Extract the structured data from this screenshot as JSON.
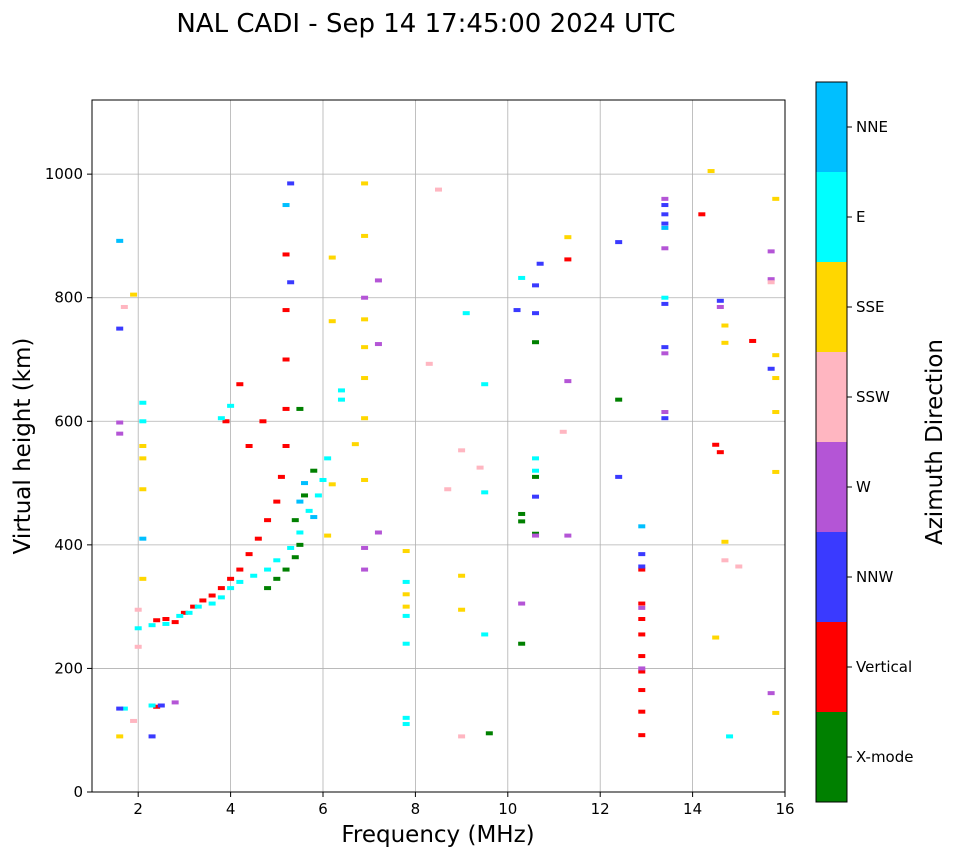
{
  "chart_data": {
    "type": "scatter",
    "title": "NAL CADI - Sep 14 17:45:00 2024 UTC",
    "xlabel": "Frequency (MHz)",
    "ylabel": "Virtual height (km)",
    "xlim": [
      1,
      16
    ],
    "ylim": [
      0,
      1120
    ],
    "xticks": [
      2,
      4,
      6,
      8,
      10,
      12,
      14,
      16
    ],
    "yticks": [
      0,
      200,
      400,
      600,
      800,
      1000
    ],
    "grid": true,
    "colorbar": {
      "label": "Azimuth Direction",
      "placement": "right",
      "categories": [
        {
          "name": "X-mode",
          "color": "#008000"
        },
        {
          "name": "Vertical",
          "color": "#ff0000"
        },
        {
          "name": "NNW",
          "color": "#3a3aff"
        },
        {
          "name": "W",
          "color": "#b455d6"
        },
        {
          "name": "SSW",
          "color": "#ffb6c1"
        },
        {
          "name": "SSE",
          "color": "#ffd700"
        },
        {
          "name": "E",
          "color": "#00ffff"
        },
        {
          "name": "NNE",
          "color": "#00bfff"
        }
      ]
    },
    "series": [
      {
        "name": "Vertical",
        "points": [
          [
            2.4,
            278
          ],
          [
            2.6,
            280
          ],
          [
            2.8,
            275
          ],
          [
            3.0,
            290
          ],
          [
            3.2,
            300
          ],
          [
            3.4,
            310
          ],
          [
            3.6,
            318
          ],
          [
            3.8,
            330
          ],
          [
            4.0,
            345
          ],
          [
            4.2,
            360
          ],
          [
            4.4,
            385
          ],
          [
            4.6,
            410
          ],
          [
            4.8,
            440
          ],
          [
            5.0,
            470
          ],
          [
            5.1,
            510
          ],
          [
            5.2,
            560
          ],
          [
            5.2,
            620
          ],
          [
            5.2,
            700
          ],
          [
            5.2,
            780
          ],
          [
            5.2,
            870
          ],
          [
            4.2,
            660
          ],
          [
            3.9,
            600
          ],
          [
            4.4,
            560
          ],
          [
            4.7,
            600
          ],
          [
            12.9,
            92
          ],
          [
            12.9,
            130
          ],
          [
            12.9,
            165
          ],
          [
            12.9,
            195
          ],
          [
            12.9,
            220
          ],
          [
            12.9,
            255
          ],
          [
            12.9,
            280
          ],
          [
            12.9,
            305
          ],
          [
            12.9,
            360
          ],
          [
            2.4,
            138
          ],
          [
            11.3,
            862
          ],
          [
            15.3,
            730
          ],
          [
            14.2,
            935
          ],
          [
            14.5,
            562
          ],
          [
            14.6,
            550
          ]
        ]
      },
      {
        "name": "E",
        "points": [
          [
            2.3,
            270
          ],
          [
            2.6,
            272
          ],
          [
            2.9,
            285
          ],
          [
            3.1,
            290
          ],
          [
            3.3,
            300
          ],
          [
            3.6,
            305
          ],
          [
            3.8,
            315
          ],
          [
            4.0,
            330
          ],
          [
            4.2,
            340
          ],
          [
            4.5,
            350
          ],
          [
            4.8,
            360
          ],
          [
            5.0,
            375
          ],
          [
            5.3,
            395
          ],
          [
            5.5,
            420
          ],
          [
            5.7,
            455
          ],
          [
            5.9,
            480
          ],
          [
            6.0,
            505
          ],
          [
            6.1,
            540
          ],
          [
            7.8,
            110
          ],
          [
            7.8,
            120
          ],
          [
            7.8,
            240
          ],
          [
            7.8,
            285
          ],
          [
            7.8,
            340
          ],
          [
            2.1,
            600
          ],
          [
            2.1,
            630
          ],
          [
            2.3,
            140
          ],
          [
            6.4,
            650
          ],
          [
            6.4,
            635
          ],
          [
            9.5,
            660
          ],
          [
            9.5,
            485
          ],
          [
            9.5,
            255
          ],
          [
            13.4,
            800
          ],
          [
            14.8,
            90
          ],
          [
            10.3,
            832
          ],
          [
            9.1,
            775
          ],
          [
            3.8,
            605
          ],
          [
            4.0,
            625
          ],
          [
            1.7,
            135
          ],
          [
            2.0,
            265
          ],
          [
            10.6,
            540
          ],
          [
            10.6,
            520
          ]
        ]
      },
      {
        "name": "X-mode",
        "points": [
          [
            4.8,
            330
          ],
          [
            5.0,
            345
          ],
          [
            5.2,
            360
          ],
          [
            5.4,
            380
          ],
          [
            5.5,
            400
          ],
          [
            5.4,
            440
          ],
          [
            5.6,
            480
          ],
          [
            5.8,
            520
          ],
          [
            10.6,
            418
          ],
          [
            10.6,
            510
          ],
          [
            10.6,
            728
          ],
          [
            10.3,
            450
          ],
          [
            10.3,
            438
          ],
          [
            10.3,
            240
          ],
          [
            12.4,
            635
          ],
          [
            9.6,
            95
          ],
          [
            5.5,
            620
          ]
        ]
      },
      {
        "name": "NNW",
        "points": [
          [
            12.9,
            385
          ],
          [
            12.9,
            365
          ],
          [
            13.4,
            920
          ],
          [
            13.4,
            935
          ],
          [
            13.4,
            950
          ],
          [
            13.4,
            720
          ],
          [
            13.4,
            790
          ],
          [
            13.4,
            605
          ],
          [
            14.6,
            795
          ],
          [
            12.4,
            510
          ],
          [
            12.4,
            890
          ],
          [
            10.2,
            780
          ],
          [
            10.6,
            775
          ],
          [
            10.6,
            820
          ],
          [
            10.6,
            478
          ],
          [
            5.3,
            985
          ],
          [
            5.3,
            825
          ],
          [
            1.6,
            750
          ],
          [
            1.6,
            135
          ],
          [
            2.3,
            90
          ],
          [
            2.5,
            140
          ],
          [
            15.7,
            685
          ],
          [
            10.7,
            855
          ]
        ]
      },
      {
        "name": "W",
        "points": [
          [
            13.4,
            960
          ],
          [
            13.4,
            880
          ],
          [
            13.4,
            710
          ],
          [
            13.4,
            615
          ],
          [
            12.9,
            298
          ],
          [
            12.9,
            200
          ],
          [
            6.9,
            800
          ],
          [
            6.9,
            360
          ],
          [
            6.9,
            395
          ],
          [
            7.2,
            828
          ],
          [
            7.2,
            725
          ],
          [
            7.2,
            420
          ],
          [
            10.3,
            305
          ],
          [
            10.6,
            415
          ],
          [
            11.3,
            665
          ],
          [
            11.3,
            415
          ],
          [
            14.6,
            785
          ],
          [
            15.7,
            875
          ],
          [
            15.7,
            830
          ],
          [
            15.7,
            160
          ],
          [
            1.6,
            598
          ],
          [
            1.6,
            580
          ],
          [
            2.8,
            145
          ]
        ]
      },
      {
        "name": "SSW",
        "points": [
          [
            8.7,
            490
          ],
          [
            8.3,
            693
          ],
          [
            9.0,
            553
          ],
          [
            9.4,
            525
          ],
          [
            9.0,
            90
          ],
          [
            11.2,
            583
          ],
          [
            14.7,
            375
          ],
          [
            15.0,
            365
          ],
          [
            8.5,
            975
          ],
          [
            1.7,
            785
          ],
          [
            1.9,
            115
          ],
          [
            2.0,
            295
          ],
          [
            2.0,
            235
          ],
          [
            15.7,
            825
          ]
        ]
      },
      {
        "name": "SSE",
        "points": [
          [
            6.2,
            498
          ],
          [
            6.1,
            415
          ],
          [
            6.2,
            762
          ],
          [
            6.2,
            865
          ],
          [
            6.9,
            900
          ],
          [
            6.9,
            765
          ],
          [
            6.9,
            720
          ],
          [
            6.9,
            670
          ],
          [
            6.9,
            605
          ],
          [
            6.9,
            505
          ],
          [
            6.9,
            985
          ],
          [
            7.8,
            300
          ],
          [
            7.8,
            320
          ],
          [
            7.8,
            390
          ],
          [
            9.0,
            350
          ],
          [
            9.0,
            295
          ],
          [
            11.3,
            898
          ],
          [
            14.4,
            1005
          ],
          [
            14.5,
            250
          ],
          [
            14.7,
            405
          ],
          [
            14.7,
            755
          ],
          [
            14.7,
            727
          ],
          [
            15.8,
            707
          ],
          [
            15.8,
            670
          ],
          [
            15.8,
            615
          ],
          [
            15.8,
            518
          ],
          [
            15.8,
            960
          ],
          [
            15.8,
            128
          ],
          [
            1.6,
            90
          ],
          [
            2.1,
            560
          ],
          [
            2.1,
            540
          ],
          [
            2.1,
            490
          ],
          [
            1.9,
            805
          ],
          [
            2.1,
            345
          ],
          [
            6.7,
            563
          ]
        ]
      },
      {
        "name": "NNE",
        "points": [
          [
            12.9,
            430
          ],
          [
            13.4,
            913
          ],
          [
            2.1,
            410
          ],
          [
            5.8,
            445
          ],
          [
            5.5,
            470
          ],
          [
            5.6,
            500
          ],
          [
            5.2,
            950
          ],
          [
            1.6,
            892
          ]
        ]
      }
    ]
  }
}
